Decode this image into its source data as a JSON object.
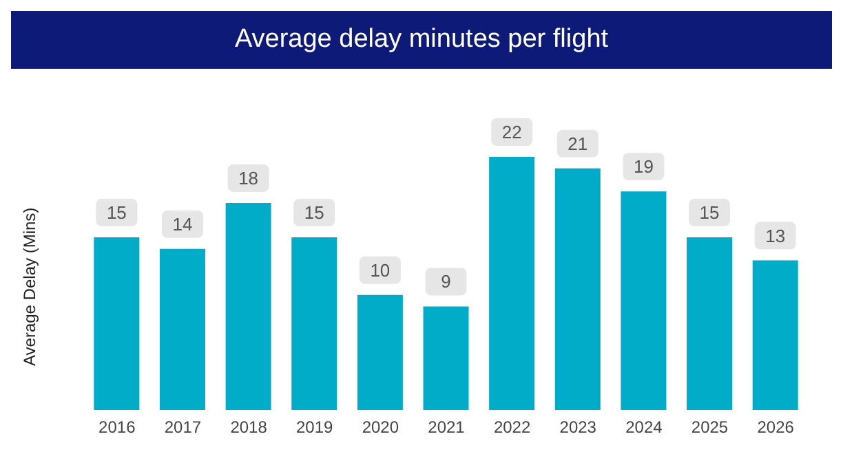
{
  "chart_data": {
    "type": "bar",
    "title": "Average delay minutes per flight",
    "ylabel": "Average Delay (Mins)",
    "categories": [
      "2016",
      "2017",
      "2018",
      "2019",
      "2020",
      "2021",
      "2022",
      "2023",
      "2024",
      "2025",
      "2026"
    ],
    "values": [
      15,
      14,
      18,
      15,
      10,
      9,
      22,
      21,
      19,
      15,
      13
    ],
    "color": "#00acc8",
    "data_labels": true,
    "grid": false,
    "legend": false
  }
}
